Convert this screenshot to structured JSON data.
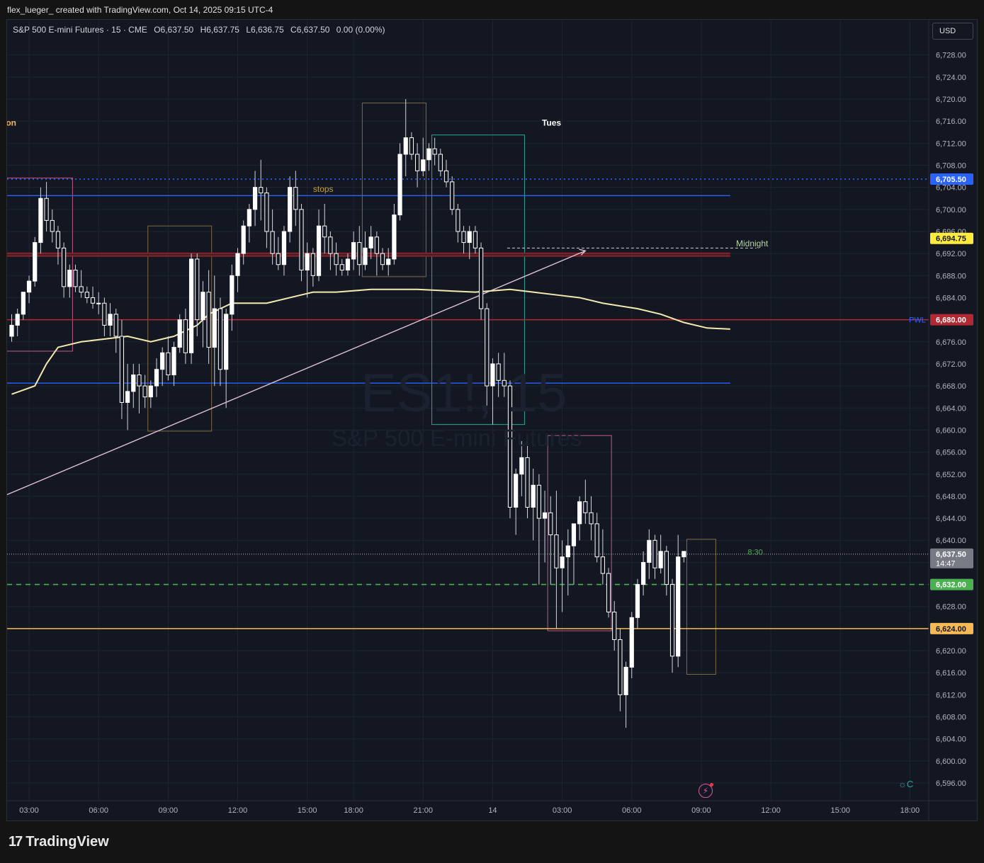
{
  "header": {
    "caption": "flex_lueger_ created with TradingView.com, Oct 14, 2025 09:15 UTC-4"
  },
  "symbol": {
    "name": "S&P 500 E-mini Futures · 15 · CME",
    "open": "O6,637.50",
    "high": "H6,637.75",
    "low": "L6,636.75",
    "close": "C6,637.50",
    "change": "0.00 (0.00%)"
  },
  "currency_button": "USD",
  "watermark": {
    "ticker": "ES1!, 15",
    "name": "S&P 500 E-mini Futures"
  },
  "footer": {
    "brand": "TradingView",
    "brand_mark": "17"
  },
  "icons": {
    "lightning": "lightning-icon",
    "settings": "sun-settings-icon"
  },
  "colors": {
    "background": "#131722",
    "candle_body": "#ffffff",
    "candle_bear_body": "#131722",
    "candle_outline": "#ffffff",
    "blue_line": "#2962ff",
    "red_line": "#b22833",
    "green_dashed": "#4caf50",
    "orange_line": "#f7b955",
    "vwap": "#f4eab0",
    "trendline": "#e1c0d6",
    "dotted_blue": "#2962ff"
  },
  "chart_data": {
    "type": "candlestick",
    "ylim": [
      6594,
      6730
    ],
    "y_ticks": [
      "6,728.00",
      "6,724.00",
      "6,720.00",
      "6,716.00",
      "6,712.00",
      "6,708.00",
      "6,704.00",
      "6,700.00",
      "6,696.00",
      "6,692.00",
      "6,688.00",
      "6,684.00",
      "6,680.00",
      "6,676.00",
      "6,672.00",
      "6,668.00",
      "6,664.00",
      "6,660.00",
      "6,656.00",
      "6,652.00",
      "6,648.00",
      "6,644.00",
      "6,640.00",
      "6,636.00",
      "6,632.00",
      "6,628.00",
      "6,624.00",
      "6,620.00",
      "6,616.00",
      "6,612.00",
      "6,608.00",
      "6,604.00",
      "6,600.00",
      "6,596.00"
    ],
    "y_tick_values": [
      6728,
      6724,
      6720,
      6716,
      6712,
      6708,
      6704,
      6700,
      6696,
      6692,
      6688,
      6684,
      6680,
      6676,
      6672,
      6668,
      6664,
      6660,
      6656,
      6652,
      6648,
      6644,
      6640,
      6636,
      6632,
      6628,
      6624,
      6620,
      6616,
      6612,
      6608,
      6604,
      6600,
      6596
    ],
    "x_ticks": [
      {
        "label": "03:00",
        "bar": 3
      },
      {
        "label": "06:00",
        "bar": 15
      },
      {
        "label": "09:00",
        "bar": 27
      },
      {
        "label": "12:00",
        "bar": 39
      },
      {
        "label": "15:00",
        "bar": 51
      },
      {
        "label": "18:00",
        "bar": 59
      },
      {
        "label": "21:00",
        "bar": 71
      },
      {
        "label": "14",
        "bar": 83
      },
      {
        "label": "03:00",
        "bar": 95
      },
      {
        "label": "06:00",
        "bar": 107
      },
      {
        "label": "09:00",
        "bar": 119
      },
      {
        "label": "12:00",
        "bar": 131
      },
      {
        "label": "15:00",
        "bar": 143
      },
      {
        "label": "18:00",
        "bar": 155
      }
    ],
    "candles": [
      [
        6677,
        6681,
        6676,
        6679
      ],
      [
        6679,
        6682,
        6677,
        6681
      ],
      [
        6681,
        6685,
        6680,
        6685
      ],
      [
        6685,
        6688,
        6683,
        6687
      ],
      [
        6687,
        6695,
        6686,
        6694
      ],
      [
        6694,
        6704,
        6692,
        6702
      ],
      [
        6702,
        6705,
        6696,
        6698
      ],
      [
        6698,
        6700,
        6694,
        6696
      ],
      [
        6696,
        6697,
        6690,
        6693
      ],
      [
        6693,
        6694,
        6684,
        6686
      ],
      [
        6686,
        6690,
        6684,
        6689
      ],
      [
        6689,
        6690,
        6685,
        6686
      ],
      [
        6686,
        6689,
        6684,
        6685
      ],
      [
        6685,
        6686,
        6683,
        6684
      ],
      [
        6684,
        6686,
        6682,
        6683
      ],
      [
        6683,
        6685,
        6681,
        6683
      ],
      [
        6683,
        6684,
        6677,
        6679
      ],
      [
        6679,
        6683,
        6677,
        6681
      ],
      [
        6681,
        6682,
        6674,
        6677
      ],
      [
        6677,
        6680,
        6662,
        6665
      ],
      [
        6665,
        6672,
        6660,
        6667
      ],
      [
        6667,
        6672,
        6664,
        6670
      ],
      [
        6670,
        6672,
        6663,
        6668
      ],
      [
        6668,
        6670,
        6664,
        6666
      ],
      [
        6666,
        6669,
        6664,
        6668
      ],
      [
        6668,
        6673,
        6666,
        6671
      ],
      [
        6671,
        6675,
        6668,
        6674
      ],
      [
        6674,
        6677,
        6669,
        6670
      ],
      [
        6670,
        6676,
        6668,
        6675
      ],
      [
        6675,
        6681,
        6674,
        6680
      ],
      [
        6680,
        6682,
        6672,
        6674
      ],
      [
        6674,
        6692,
        6672,
        6691
      ],
      [
        6691,
        6692,
        6677,
        6680
      ],
      [
        6680,
        6687,
        6675,
        6685
      ],
      [
        6685,
        6689,
        6672,
        6675
      ],
      [
        6675,
        6688,
        6668,
        6682
      ],
      [
        6682,
        6684,
        6668,
        6671
      ],
      [
        6671,
        6682,
        6664,
        6681
      ],
      [
        6681,
        6690,
        6678,
        6688
      ],
      [
        6688,
        6693,
        6685,
        6692
      ],
      [
        6692,
        6698,
        6690,
        6697
      ],
      [
        6697,
        6701,
        6694,
        6700
      ],
      [
        6700,
        6707,
        6697,
        6704
      ],
      [
        6704,
        6709,
        6698,
        6703
      ],
      [
        6703,
        6704,
        6693,
        6696
      ],
      [
        6696,
        6700,
        6690,
        6692
      ],
      [
        6692,
        6695,
        6689,
        6690
      ],
      [
        6690,
        6697,
        6688,
        6696
      ],
      [
        6696,
        6706,
        6694,
        6704
      ],
      [
        6704,
        6707,
        6697,
        6700
      ],
      [
        6700,
        6701,
        6687,
        6689
      ],
      [
        6689,
        6694,
        6684,
        6692
      ],
      [
        6692,
        6693,
        6686,
        6688
      ],
      [
        6688,
        6700,
        6687,
        6697
      ],
      [
        6697,
        6701,
        6692,
        6695
      ],
      [
        6695,
        6696,
        6689,
        6692
      ],
      [
        6692,
        6694,
        6688,
        6690
      ],
      [
        6690,
        6691,
        6688,
        6689
      ],
      [
        6689,
        6692,
        6688,
        6691
      ],
      [
        6691,
        6696,
        6689,
        6694
      ],
      [
        6694,
        6697,
        6688,
        6690
      ],
      [
        6690,
        6696,
        6689,
        6693
      ],
      [
        6693,
        6697,
        6691,
        6695
      ],
      [
        6695,
        6696,
        6688,
        6692
      ],
      [
        6692,
        6693,
        6689,
        6690
      ],
      [
        6690,
        6693,
        6688,
        6691
      ],
      [
        6691,
        6701,
        6690,
        6699
      ],
      [
        6699,
        6712,
        6698,
        6710
      ],
      [
        6710,
        6720,
        6706,
        6713
      ],
      [
        6713,
        6714,
        6709,
        6710
      ],
      [
        6710,
        6712,
        6704,
        6707
      ],
      [
        6707,
        6713,
        6706,
        6709
      ],
      [
        6709,
        6712,
        6707,
        6711
      ],
      [
        6711,
        6713,
        6708,
        6710
      ],
      [
        6710,
        6711,
        6706,
        6707
      ],
      [
        6707,
        6709,
        6704,
        6705
      ],
      [
        6705,
        6706,
        6699,
        6700
      ],
      [
        6700,
        6701,
        6694,
        6696
      ],
      [
        6696,
        6697,
        6692,
        6694
      ],
      [
        6694,
        6697,
        6691,
        6696
      ],
      [
        6696,
        6697,
        6692,
        6693
      ],
      [
        6693,
        6694,
        6680,
        6682
      ],
      [
        6682,
        6683,
        6663,
        6668
      ],
      [
        6668,
        6673,
        6661,
        6672
      ],
      [
        6672,
        6674,
        6666,
        6669
      ],
      [
        6669,
        6674,
        6666,
        6668
      ],
      [
        6668,
        6669,
        6644,
        6646
      ],
      [
        6646,
        6653,
        6641,
        6652
      ],
      [
        6652,
        6658,
        6648,
        6655
      ],
      [
        6655,
        6659,
        6644,
        6646
      ],
      [
        6646,
        6653,
        6640,
        6650
      ],
      [
        6650,
        6652,
        6632,
        6644
      ],
      [
        6644,
        6649,
        6636,
        6645
      ],
      [
        6645,
        6648,
        6632,
        6641
      ],
      [
        6641,
        6649,
        6624,
        6635
      ],
      [
        6635,
        6640,
        6627,
        6637
      ],
      [
        6637,
        6642,
        6630,
        6639
      ],
      [
        6639,
        6643,
        6632,
        6643
      ],
      [
        6643,
        6648,
        6640,
        6647
      ],
      [
        6647,
        6651,
        6643,
        6645
      ],
      [
        6645,
        6648,
        6640,
        6643
      ],
      [
        6643,
        6645,
        6636,
        6637
      ],
      [
        6637,
        6642,
        6632,
        6634
      ],
      [
        6634,
        6635,
        6626,
        6627
      ],
      [
        6627,
        6629,
        6620,
        6622
      ],
      [
        6622,
        6624,
        6609,
        6612
      ],
      [
        6612,
        6618,
        6606,
        6617
      ],
      [
        6617,
        6627,
        6615,
        6626
      ],
      [
        6626,
        6633,
        6624,
        6632
      ],
      [
        6632,
        6638,
        6630,
        6636
      ],
      [
        6636,
        6642,
        6633,
        6640
      ],
      [
        6640,
        6641,
        6633,
        6635
      ],
      [
        6635,
        6641,
        6634,
        6638
      ],
      [
        6638,
        6639,
        6630,
        6632
      ],
      [
        6632,
        6633,
        6616,
        6619
      ],
      [
        6619,
        6641,
        6617,
        6637
      ],
      [
        6637,
        6638,
        6636,
        6638
      ]
    ],
    "vwap": [
      [
        0,
        6666.5
      ],
      [
        4,
        6668
      ],
      [
        6,
        6672
      ],
      [
        8,
        6675
      ],
      [
        12,
        6676
      ],
      [
        20,
        6677
      ],
      [
        24,
        6676
      ],
      [
        28,
        6677
      ],
      [
        32,
        6679
      ],
      [
        34,
        6681
      ],
      [
        38,
        6683
      ],
      [
        44,
        6683
      ],
      [
        48,
        6684
      ],
      [
        52,
        6685
      ],
      [
        56,
        6685
      ],
      [
        62,
        6685.5
      ],
      [
        70,
        6685.5
      ],
      [
        80,
        6685
      ],
      [
        86,
        6685.5
      ],
      [
        90,
        6685
      ],
      [
        94,
        6684.5
      ],
      [
        98,
        6684
      ],
      [
        102,
        6683
      ],
      [
        108,
        6682
      ],
      [
        112,
        6681
      ],
      [
        116,
        6679.5
      ],
      [
        120,
        6678.5
      ],
      [
        124,
        6678.3
      ]
    ],
    "horizontal_lines": [
      {
        "name": "blue-upper-line",
        "price": 6702.5,
        "color": "#2962ff",
        "to_bar": 124,
        "style": "solid"
      },
      {
        "name": "blue-lower-line",
        "price": 6668.5,
        "color": "#2962ff",
        "to_bar": 124,
        "style": "solid"
      },
      {
        "name": "red-zone",
        "price": 6691.8,
        "color": "#b22833",
        "to_bar": 124,
        "style": "thick"
      },
      {
        "name": "pwl-line",
        "price": 6680,
        "color": "#b22833",
        "to_bar": -1,
        "style": "solid"
      },
      {
        "name": "dotted-blue-line",
        "price": 6705.5,
        "color": "#2962ff",
        "to_bar": -1,
        "style": "dotted"
      },
      {
        "name": "green-dashed-line",
        "price": 6632,
        "color": "#4caf50",
        "to_bar": -1,
        "style": "dashed"
      },
      {
        "name": "orange-line",
        "price": 6624,
        "color": "#f7b955",
        "to_bar": -1,
        "style": "solid"
      },
      {
        "name": "last-price-line",
        "price": 6637.5,
        "color": "#787b86",
        "to_bar": -1,
        "style": "dotted"
      }
    ],
    "boxes": [
      {
        "name": "box-session-1",
        "x0": -1,
        "x1": 10.5,
        "top": 6705.7,
        "bottom": 6674.3,
        "color": "#c2578a"
      },
      {
        "name": "box-session-2",
        "x0": 23.5,
        "x1": 34.5,
        "top": 6697,
        "bottom": 6659.8,
        "color": "#7b6a45"
      },
      {
        "name": "box-session-3",
        "x0": 60.5,
        "x1": 71.5,
        "top": 6719.3,
        "bottom": 6687.8,
        "color": "#7b6a45"
      },
      {
        "name": "box-session-4",
        "x0": 72.5,
        "x1": 88.5,
        "top": 6713.5,
        "bottom": 6661,
        "color": "#26a69a"
      },
      {
        "name": "box-session-5",
        "x0": 92.5,
        "x1": 103.5,
        "top": 6659,
        "bottom": 6623.6,
        "color": "#c2578a"
      },
      {
        "name": "box-session-6",
        "x0": 116.5,
        "x1": 121.5,
        "top": 6640.2,
        "bottom": 6615.7,
        "color": "#7b6a45"
      }
    ],
    "trendline": {
      "x0": -1,
      "y0": 6648.2,
      "x1": 99,
      "y1": 6692.5
    },
    "midnight_line": {
      "x0": 85.5,
      "x1": 128.5,
      "price": 6693
    },
    "texts": [
      {
        "name": "label-session-on",
        "text": "on",
        "bar": -1,
        "price": 6715.7,
        "color": "#f7b955"
      },
      {
        "name": "label-tues",
        "text": "Tues",
        "bar": 91.5,
        "price": 6715.7,
        "color": "#ffffff"
      },
      {
        "name": "label-stops",
        "text": "stops",
        "bar": 52,
        "price": 6703.7,
        "color": "#c9a227"
      },
      {
        "name": "label-midnight",
        "text": "Midnight",
        "bar": 125,
        "price": 6693.8,
        "color": "#b9d4a5"
      },
      {
        "name": "label-countdown",
        "text": "8:30",
        "bar": 127,
        "price": 6637.9,
        "color": "#4caf50"
      }
    ],
    "price_labels": [
      {
        "name": "price-label-dotted-blue",
        "text": "6,705.50",
        "price": 6705.5,
        "bg": "#2962ff",
        "fg": "#ffffff"
      },
      {
        "name": "price-label-midnight",
        "text": "6,694.75",
        "price": 6694.75,
        "bg": "#ffeb3b",
        "fg": "#131722"
      },
      {
        "name": "price-label-pwl",
        "text": "6,680.00",
        "price": 6680,
        "bg": "#b22833",
        "fg": "#ffffff"
      },
      {
        "name": "price-label-last",
        "text": "6,637.50",
        "sub": "14:47",
        "price": 6637.5,
        "bg": "#787b86",
        "fg": "#ffffff"
      },
      {
        "name": "price-label-green",
        "text": "6,632.00",
        "price": 6632,
        "bg": "#4caf50",
        "fg": "#ffffff"
      },
      {
        "name": "price-label-orange",
        "text": "6,624.00",
        "price": 6624,
        "bg": "#f7b955",
        "fg": "#131722"
      }
    ],
    "pwl_label": "PWL"
  }
}
